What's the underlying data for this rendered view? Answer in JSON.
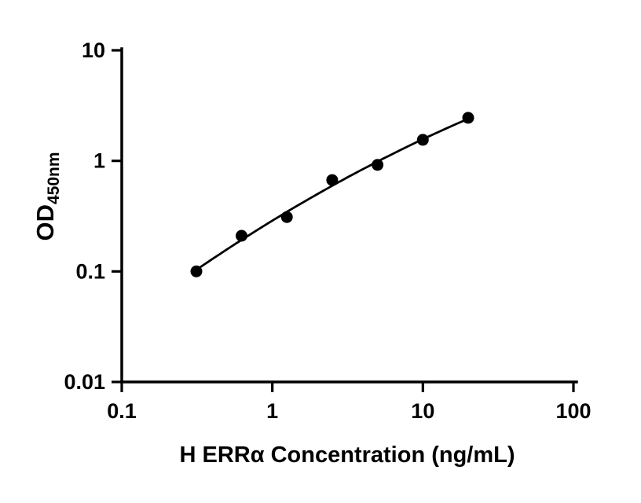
{
  "chart_data": {
    "type": "scatter",
    "title": "",
    "xlabel": "H ERRα Concentration (ng/mL)",
    "ylabel": "OD450nm",
    "ylabel_main": "OD",
    "ylabel_sub": "450nm",
    "xscale": "log",
    "yscale": "log",
    "xlim": [
      0.1,
      100
    ],
    "ylim": [
      0.01,
      10
    ],
    "xticks": [
      0.1,
      1,
      10,
      100
    ],
    "xtick_labels": [
      "0.1",
      "1",
      "10",
      "100"
    ],
    "yticks": [
      0.01,
      0.1,
      1,
      10
    ],
    "ytick_labels": [
      "0.01",
      "0.1",
      "1",
      "10"
    ],
    "grid": false,
    "legend": false,
    "x": [
      0.313,
      0.625,
      1.25,
      2.5,
      5,
      10,
      20
    ],
    "y": [
      0.1,
      0.21,
      0.31,
      0.67,
      0.92,
      1.55,
      2.45
    ],
    "marker": "circle",
    "marker_color": "#000000",
    "line_color": "#000000",
    "axis_color": "#000000",
    "background_color": "#ffffff",
    "fit": "smooth curve through standards (log-log)"
  }
}
